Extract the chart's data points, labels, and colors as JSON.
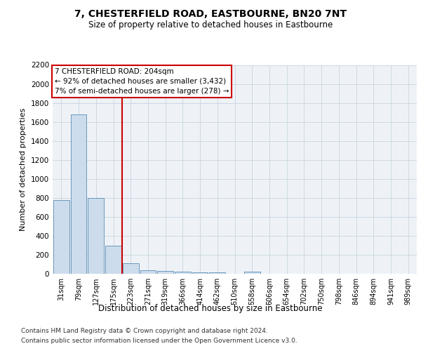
{
  "title": "7, CHESTERFIELD ROAD, EASTBOURNE, BN20 7NT",
  "subtitle": "Size of property relative to detached houses in Eastbourne",
  "xlabel": "Distribution of detached houses by size in Eastbourne",
  "ylabel": "Number of detached properties",
  "categories": [
    "31sqm",
    "79sqm",
    "127sqm",
    "175sqm",
    "223sqm",
    "271sqm",
    "319sqm",
    "366sqm",
    "414sqm",
    "462sqm",
    "510sqm",
    "558sqm",
    "606sqm",
    "654sqm",
    "702sqm",
    "750sqm",
    "798sqm",
    "846sqm",
    "894sqm",
    "941sqm",
    "989sqm"
  ],
  "values": [
    775,
    1675,
    800,
    295,
    110,
    38,
    28,
    22,
    18,
    16,
    0,
    22,
    0,
    0,
    0,
    0,
    0,
    0,
    0,
    0,
    0
  ],
  "bar_color": "#ccdcec",
  "bar_edge_color": "#5a8db5",
  "grid_color": "#c8d4e0",
  "annotation_line_color": "#cc0000",
  "annotation_box_text": "7 CHESTERFIELD ROAD: 204sqm\n← 92% of detached houses are smaller (3,432)\n7% of semi-detached houses are larger (278) →",
  "ylim": [
    0,
    2200
  ],
  "yticks": [
    0,
    200,
    400,
    600,
    800,
    1000,
    1200,
    1400,
    1600,
    1800,
    2000,
    2200
  ],
  "footer_line1": "Contains HM Land Registry data © Crown copyright and database right 2024.",
  "footer_line2": "Contains public sector information licensed under the Open Government Licence v3.0.",
  "bg_color": "#eef2f7"
}
